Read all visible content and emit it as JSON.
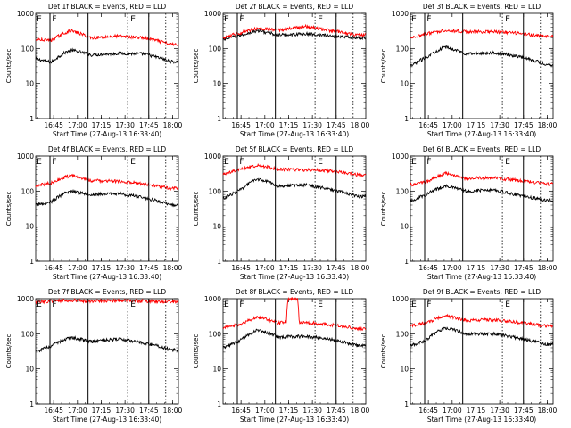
{
  "chart_data": [
    {
      "type": "line",
      "title": "Det 1f BLACK = Events, RED = LLD",
      "xlabel": "Start Time (27-Aug-13 16:33:40)",
      "ylabel": "Counts/sec",
      "ylog": true,
      "ylim": [
        1,
        1000
      ],
      "x_tick_labels": [
        "16:45",
        "17:00",
        "17:15",
        "17:30",
        "17:45",
        "18:00"
      ],
      "y_tick_labels": [
        "1",
        "10",
        "100",
        "1000"
      ],
      "region_labels": [
        "E",
        "F",
        "E"
      ],
      "series": [
        {
          "name": "Events",
          "color": "#000000",
          "x_min": [
            0,
            10,
            22,
            35,
            52,
            68,
            85
          ],
          "values": [
            50,
            40,
            90,
            65,
            72,
            70,
            42
          ]
        },
        {
          "name": "LLD",
          "color": "#ff0000",
          "x_min": [
            0,
            10,
            22,
            35,
            52,
            68,
            85
          ],
          "values": [
            180,
            170,
            320,
            200,
            225,
            200,
            130
          ]
        }
      ]
    },
    {
      "type": "line",
      "title": "Det 2f BLACK = Events, RED = LLD",
      "xlabel": "Start Time (27-Aug-13 16:33:40)",
      "ylabel": "Counts/sec",
      "ylog": true,
      "ylim": [
        1,
        1000
      ],
      "x_tick_labels": [
        "16:45",
        "17:00",
        "17:15",
        "17:30",
        "17:45",
        "18:00"
      ],
      "y_tick_labels": [
        "1",
        "10",
        "100",
        "1000"
      ],
      "region_labels": [
        "E",
        "F",
        "E"
      ],
      "series": [
        {
          "name": "Events",
          "color": "#000000",
          "x_min": [
            0,
            10,
            22,
            35,
            52,
            68,
            85
          ],
          "values": [
            180,
            230,
            320,
            240,
            260,
            230,
            200
          ]
        },
        {
          "name": "LLD",
          "color": "#ff0000",
          "x_min": [
            0,
            10,
            22,
            35,
            52,
            68,
            85
          ],
          "values": [
            200,
            270,
            380,
            330,
            420,
            320,
            240
          ]
        }
      ]
    },
    {
      "type": "line",
      "title": "Det 3f BLACK = Events, RED = LLD",
      "xlabel": "Start Time (27-Aug-13 16:33:40)",
      "ylabel": "Counts/sec",
      "ylog": true,
      "ylim": [
        1,
        1000
      ],
      "x_tick_labels": [
        "16:45",
        "17:00",
        "17:15",
        "17:30",
        "17:45",
        "18:00"
      ],
      "y_tick_labels": [
        "1",
        "10",
        "100",
        "1000"
      ],
      "region_labels": [
        "E",
        "F",
        "E"
      ],
      "series": [
        {
          "name": "Events",
          "color": "#000000",
          "x_min": [
            0,
            10,
            22,
            35,
            52,
            68,
            85
          ],
          "values": [
            30,
            55,
            110,
            70,
            75,
            60,
            35
          ]
        },
        {
          "name": "LLD",
          "color": "#ff0000",
          "x_min": [
            0,
            10,
            22,
            35,
            52,
            68,
            85
          ],
          "values": [
            200,
            260,
            330,
            300,
            300,
            270,
            220
          ]
        }
      ]
    },
    {
      "type": "line",
      "title": "Det 4f BLACK = Events, RED = LLD",
      "xlabel": "Start Time (27-Aug-13 16:33:40)",
      "ylabel": "Counts/sec",
      "ylog": true,
      "ylim": [
        1,
        1000
      ],
      "x_tick_labels": [
        "16:45",
        "17:00",
        "17:15",
        "17:30",
        "17:45",
        "18:00"
      ],
      "y_tick_labels": [
        "1",
        "10",
        "100",
        "1000"
      ],
      "region_labels": [
        "E",
        "F",
        "E"
      ],
      "series": [
        {
          "name": "Events",
          "color": "#000000",
          "x_min": [
            0,
            10,
            22,
            35,
            52,
            68,
            85
          ],
          "values": [
            40,
            50,
            100,
            80,
            85,
            65,
            40
          ]
        },
        {
          "name": "LLD",
          "color": "#ff0000",
          "x_min": [
            0,
            10,
            22,
            35,
            52,
            68,
            85
          ],
          "values": [
            140,
            170,
            280,
            200,
            190,
            160,
            120
          ]
        }
      ]
    },
    {
      "type": "line",
      "title": "Det 5f BLACK = Events, RED = LLD",
      "xlabel": "Start Time (27-Aug-13 16:33:40)",
      "ylabel": "Counts/sec",
      "ylog": true,
      "ylim": [
        1,
        1000
      ],
      "x_tick_labels": [
        "16:45",
        "17:00",
        "17:15",
        "17:30",
        "17:45",
        "18:00"
      ],
      "y_tick_labels": [
        "1",
        "10",
        "100",
        "1000"
      ],
      "region_labels": [
        "E",
        "F",
        "E"
      ],
      "series": [
        {
          "name": "Events",
          "color": "#000000",
          "x_min": [
            0,
            10,
            22,
            35,
            52,
            68,
            85
          ],
          "values": [
            60,
            100,
            220,
            140,
            150,
            110,
            70
          ]
        },
        {
          "name": "LLD",
          "color": "#ff0000",
          "x_min": [
            0,
            10,
            22,
            35,
            52,
            68,
            85
          ],
          "values": [
            300,
            400,
            550,
            420,
            400,
            380,
            290
          ]
        }
      ]
    },
    {
      "type": "line",
      "title": "Det 6f BLACK = Events, RED = LLD",
      "xlabel": "Start Time (27-Aug-13 16:33:40)",
      "ylabel": "Counts/sec",
      "ylog": true,
      "ylim": [
        1,
        1000
      ],
      "x_tick_labels": [
        "16:45",
        "17:00",
        "17:15",
        "17:30",
        "17:45",
        "18:00"
      ],
      "y_tick_labels": [
        "1",
        "10",
        "100",
        "1000"
      ],
      "region_labels": [
        "E",
        "F",
        "E"
      ],
      "series": [
        {
          "name": "Events",
          "color": "#000000",
          "x_min": [
            0,
            10,
            22,
            35,
            52,
            68,
            85
          ],
          "values": [
            50,
            80,
            140,
            100,
            110,
            75,
            55
          ]
        },
        {
          "name": "LLD",
          "color": "#ff0000",
          "x_min": [
            0,
            10,
            22,
            35,
            52,
            68,
            85
          ],
          "values": [
            150,
            180,
            320,
            230,
            240,
            200,
            160
          ]
        }
      ]
    },
    {
      "type": "line",
      "title": "Det 7f BLACK = Events, RED = LLD",
      "xlabel": "Start Time (27-Aug-13 16:33:40)",
      "ylabel": "Counts/sec",
      "ylog": true,
      "ylim": [
        1,
        1000
      ],
      "x_tick_labels": [
        "16:45",
        "17:00",
        "17:15",
        "17:30",
        "17:45",
        "18:00"
      ],
      "y_tick_labels": [
        "1",
        "10",
        "100",
        "1000"
      ],
      "region_labels": [
        "E",
        "F",
        "E"
      ],
      "series": [
        {
          "name": "Events",
          "color": "#000000",
          "x_min": [
            0,
            10,
            22,
            35,
            52,
            68,
            85
          ],
          "values": [
            30,
            45,
            80,
            60,
            70,
            55,
            35
          ]
        },
        {
          "name": "LLD",
          "color": "#ff0000",
          "x_min": [
            0,
            10,
            22,
            35,
            52,
            68,
            85
          ],
          "values": [
            800,
            850,
            900,
            850,
            880,
            850,
            820
          ]
        }
      ]
    },
    {
      "type": "line",
      "title": "Det 8f BLACK = Events, RED = LLD",
      "xlabel": "Start Time (27-Aug-13 16:33:40)",
      "ylabel": "Counts/sec",
      "ylog": true,
      "ylim": [
        1,
        1000
      ],
      "x_tick_labels": [
        "16:45",
        "17:00",
        "17:15",
        "17:30",
        "17:45",
        "18:00"
      ],
      "y_tick_labels": [
        "1",
        "10",
        "100",
        "1000"
      ],
      "region_labels": [
        "E",
        "F",
        "E"
      ],
      "series": [
        {
          "name": "Events",
          "color": "#000000",
          "x_min": [
            0,
            10,
            22,
            35,
            52,
            68,
            85
          ],
          "values": [
            40,
            60,
            130,
            80,
            85,
            70,
            45
          ]
        },
        {
          "name": "LLD",
          "color": "#ff0000",
          "x_min": [
            0,
            10,
            22,
            35,
            40,
            41,
            47,
            48,
            52,
            68,
            85
          ],
          "values": [
            150,
            180,
            300,
            200,
            220,
            1000,
            1000,
            200,
            210,
            180,
            140
          ]
        }
      ]
    },
    {
      "type": "line",
      "title": "Det 9f BLACK = Events, RED = LLD",
      "xlabel": "Start Time (27-Aug-13 16:33:40)",
      "ylabel": "Counts/sec",
      "ylog": true,
      "ylim": [
        1,
        1000
      ],
      "x_tick_labels": [
        "16:45",
        "17:00",
        "17:15",
        "17:30",
        "17:45",
        "18:00"
      ],
      "y_tick_labels": [
        "1",
        "10",
        "100",
        "1000"
      ],
      "region_labels": [
        "E",
        "F",
        "E"
      ],
      "series": [
        {
          "name": "Events",
          "color": "#000000",
          "x_min": [
            0,
            10,
            22,
            35,
            52,
            68,
            85
          ],
          "values": [
            45,
            65,
            150,
            100,
            100,
            75,
            50
          ]
        },
        {
          "name": "LLD",
          "color": "#ff0000",
          "x_min": [
            0,
            10,
            22,
            35,
            52,
            68,
            85
          ],
          "values": [
            170,
            200,
            330,
            240,
            250,
            210,
            170
          ]
        }
      ]
    }
  ]
}
